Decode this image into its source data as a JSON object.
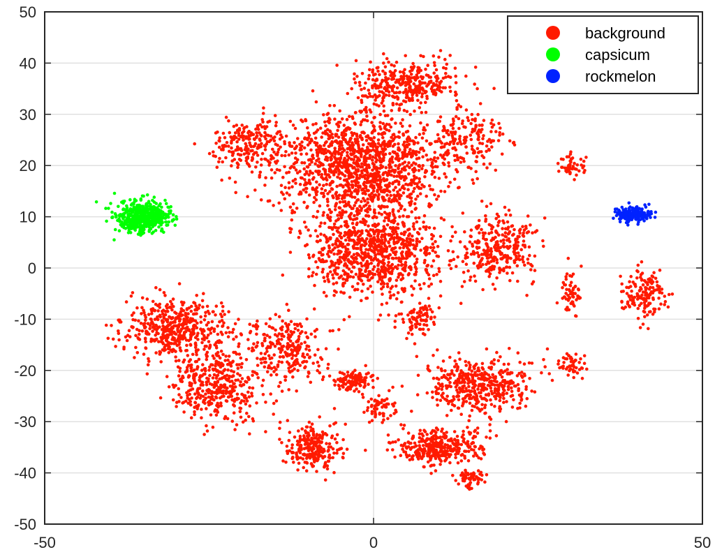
{
  "chart_data": {
    "type": "scatter",
    "title": "",
    "xlabel": "",
    "ylabel": "",
    "xlim": [
      -50,
      50
    ],
    "ylim": [
      -50,
      50
    ],
    "xticks": [
      -50,
      0,
      50
    ],
    "yticks": [
      50,
      40,
      30,
      20,
      10,
      0,
      -10,
      -20,
      -30,
      -40,
      -50
    ],
    "grid": true,
    "legend_position": "top-right",
    "series": [
      {
        "name": "background",
        "color": "#ff1a00",
        "clusters": [
          {
            "center": [
              -2,
              20
            ],
            "spread": [
              12,
              10
            ],
            "count": 1400
          },
          {
            "center": [
              5,
              36
            ],
            "spread": [
              7,
              4
            ],
            "count": 350
          },
          {
            "center": [
              0,
              3
            ],
            "spread": [
              9,
              8
            ],
            "count": 900
          },
          {
            "center": [
              -19,
              24
            ],
            "spread": [
              5,
              4
            ],
            "count": 200
          },
          {
            "center": [
              15,
              25
            ],
            "spread": [
              5,
              5
            ],
            "count": 150
          },
          {
            "center": [
              19,
              4
            ],
            "spread": [
              5,
              6
            ],
            "count": 300
          },
          {
            "center": [
              30,
              20
            ],
            "spread": [
              2,
              2
            ],
            "count": 50
          },
          {
            "center": [
              30,
              -5
            ],
            "spread": [
              1.5,
              4
            ],
            "count": 60
          },
          {
            "center": [
              41,
              -5
            ],
            "spread": [
              3,
              4
            ],
            "count": 150
          },
          {
            "center": [
              30,
              -19
            ],
            "spread": [
              2,
              2.5
            ],
            "count": 50
          },
          {
            "center": [
              -30,
              -12
            ],
            "spread": [
              8,
              5
            ],
            "count": 500
          },
          {
            "center": [
              -24,
              -23
            ],
            "spread": [
              6,
              6
            ],
            "count": 400
          },
          {
            "center": [
              -13,
              -16
            ],
            "spread": [
              5,
              6
            ],
            "count": 250
          },
          {
            "center": [
              -9,
              -35
            ],
            "spread": [
              4,
              4
            ],
            "count": 250
          },
          {
            "center": [
              -3,
              -22
            ],
            "spread": [
              2.5,
              2
            ],
            "count": 120
          },
          {
            "center": [
              1,
              -27
            ],
            "spread": [
              2,
              2
            ],
            "count": 60
          },
          {
            "center": [
              7,
              -10
            ],
            "spread": [
              2.5,
              3
            ],
            "count": 80
          },
          {
            "center": [
              16,
              -23
            ],
            "spread": [
              7,
              5
            ],
            "count": 450
          },
          {
            "center": [
              10,
              -35
            ],
            "spread": [
              6,
              3
            ],
            "count": 350
          },
          {
            "center": [
              15,
              -41
            ],
            "spread": [
              2,
              1.5
            ],
            "count": 60
          }
        ]
      },
      {
        "name": "capsicum",
        "color": "#00ff00",
        "clusters": [
          {
            "center": [
              -35,
              10
            ],
            "spread": [
              3.5,
              2.8
            ],
            "count": 550
          }
        ]
      },
      {
        "name": "rockmelon",
        "color": "#0022ff",
        "clusters": [
          {
            "center": [
              39.5,
              10.5
            ],
            "spread": [
              2.5,
              1.2
            ],
            "count": 220
          }
        ]
      }
    ]
  }
}
